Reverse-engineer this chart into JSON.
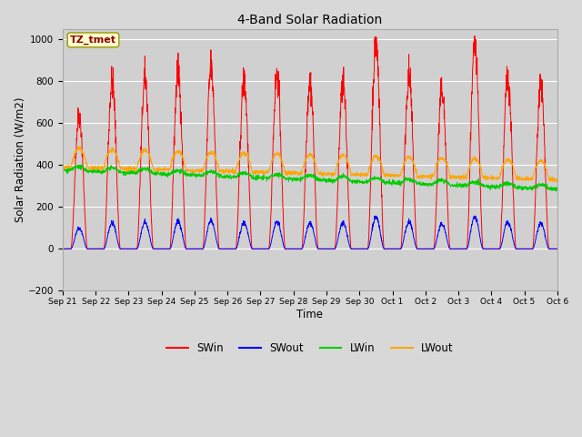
{
  "title": "4-Band Solar Radiation",
  "xlabel": "Time",
  "ylabel": "Solar Radiation (W/m2)",
  "ylim": [
    -200,
    1050
  ],
  "yticks": [
    -200,
    0,
    200,
    400,
    600,
    800,
    1000
  ],
  "annotation_text": "TZ_tmet",
  "annotation_color": "#8B0000",
  "annotation_bg": "#FFFFCC",
  "annotation_border": "#999900",
  "n_days": 15,
  "colors": {
    "SWin": "#FF0000",
    "SWout": "#0000FF",
    "LWin": "#00CC00",
    "LWout": "#FFA500"
  },
  "bg_color": "#D8D8D8",
  "plot_bg": "#D0D0D0",
  "SWin_peaks": [
    640,
    800,
    810,
    845,
    860,
    800,
    830,
    800,
    780,
    980,
    820,
    760,
    960,
    820,
    780
  ],
  "tick_labels": [
    "Sep 21",
    "Sep 22",
    "Sep 23",
    "Sep 24",
    "Sep 25",
    "Sep 26",
    "Sep 27",
    "Sep 28",
    "Sep 29",
    "Sep 30",
    "Oct 1",
    "Oct 2",
    "Oct 3",
    "Oct 4",
    "Oct 5",
    "Oct 6"
  ]
}
